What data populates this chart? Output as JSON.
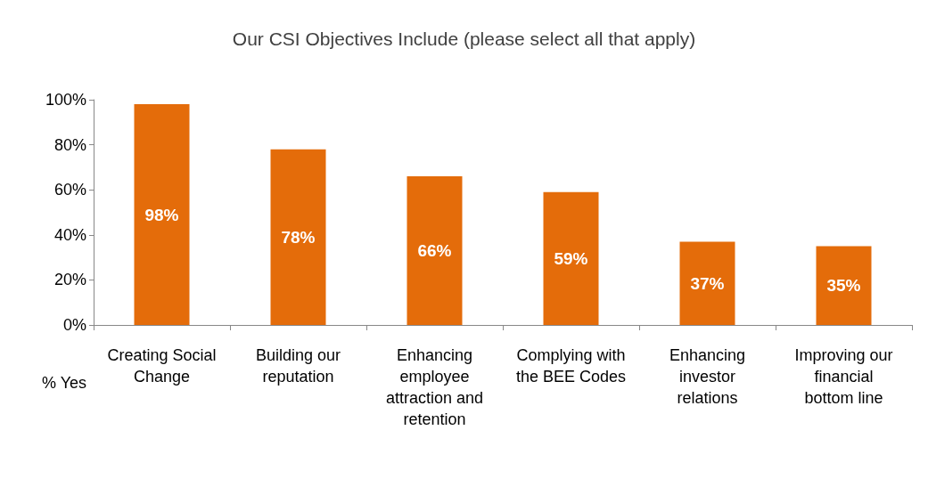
{
  "chart_data": {
    "type": "bar",
    "title": "Our CSI Objectives Include (please select all that apply)",
    "xlabel": "% Yes",
    "categories": [
      "Creating Social Change",
      "Building our reputation",
      "Enhancing employee attraction and retention",
      "Complying with the BEE Codes",
      "Enhancing investor relations",
      "Improving our financial bottom line"
    ],
    "values": [
      98,
      78,
      66,
      59,
      37,
      35
    ],
    "value_labels": [
      "98%",
      "78%",
      "66%",
      "59%",
      "37%",
      "35%"
    ],
    "color": "#e46c0a",
    "ylim": [
      0,
      100
    ],
    "yticks": [
      {
        "value": 0,
        "label": "0%"
      },
      {
        "value": 20,
        "label": "20%"
      },
      {
        "value": 40,
        "label": "40%"
      },
      {
        "value": 60,
        "label": "60%"
      },
      {
        "value": 80,
        "label": "80%"
      },
      {
        "value": 100,
        "label": "100%"
      }
    ],
    "grid": false
  }
}
